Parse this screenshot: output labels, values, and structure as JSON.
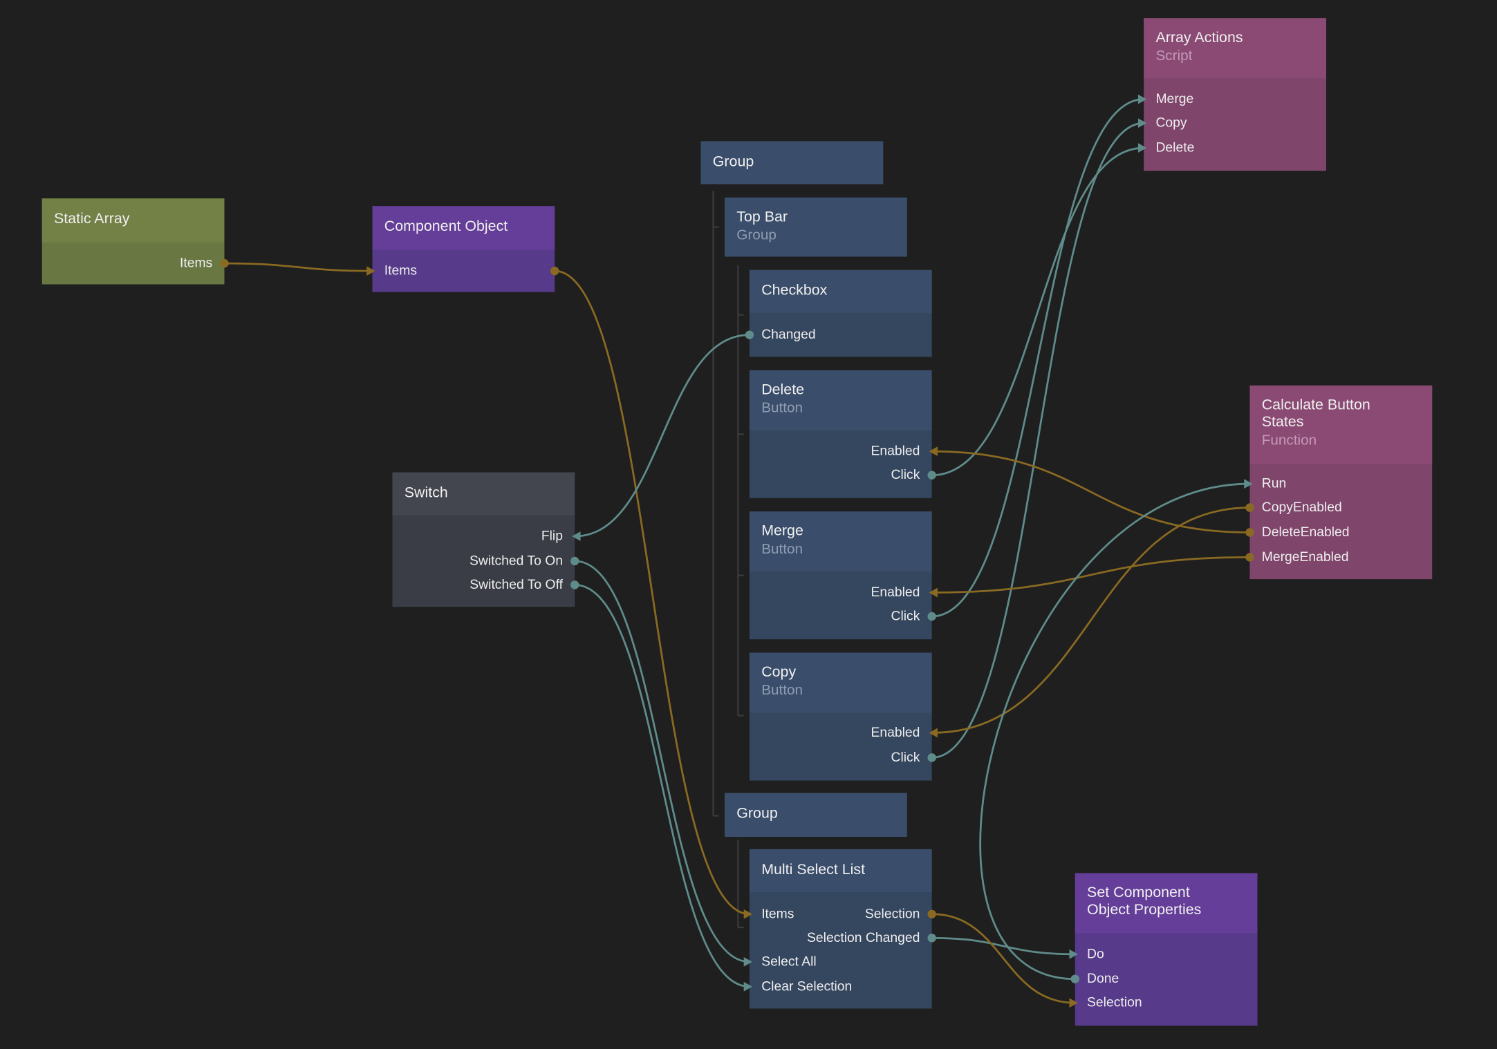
{
  "colors": {
    "background": "#1f1f1f",
    "gold": "#8a6a22",
    "teal": "#5f8c8a"
  },
  "themes": {
    "green": {
      "header": "#738147",
      "body": "#697843",
      "sub": "#c8d0a8"
    },
    "purple": {
      "header": "#643e98",
      "body": "#573a8a",
      "sub": "#b8a8d8"
    },
    "blue": {
      "header": "#3a4d6a",
      "body": "#35465f",
      "sub": "#8f9db3"
    },
    "grey": {
      "header": "#43454f",
      "body": "#3b3d46",
      "sub": "#a0a0a8"
    },
    "pink": {
      "header": "#8a4a74",
      "body": "#7f456b",
      "sub": "#c69ab6"
    }
  },
  "nodes": [
    {
      "id": "static_array",
      "title": "Static Array",
      "subtitle": "",
      "theme": "green",
      "ports": [
        {
          "label": "Items",
          "side": "right",
          "marker": "dot",
          "color": "gold"
        }
      ]
    },
    {
      "id": "component_object",
      "title": "Component Object",
      "subtitle": "",
      "theme": "purple",
      "ports": [
        {
          "label": "Items",
          "side": "left",
          "marker": "arrow",
          "color": "gold"
        },
        {
          "label": "",
          "side": "right",
          "marker": "dot",
          "color": "gold"
        }
      ]
    },
    {
      "id": "group_root",
      "title": "Group",
      "subtitle": "",
      "theme": "blue",
      "ports": []
    },
    {
      "id": "top_bar",
      "title": "Top Bar",
      "subtitle": "Group",
      "theme": "blue",
      "ports": []
    },
    {
      "id": "checkbox",
      "title": "Checkbox",
      "subtitle": "",
      "theme": "blue",
      "ports": [
        {
          "label": "Changed",
          "side": "left",
          "marker": "dot",
          "color": "teal"
        }
      ]
    },
    {
      "id": "delete_button",
      "title": "Delete",
      "subtitle": "Button",
      "theme": "blue",
      "ports": [
        {
          "label": "Enabled",
          "side": "right",
          "marker": "arrow",
          "color": "gold"
        },
        {
          "label": "Click",
          "side": "right",
          "marker": "dot",
          "color": "teal"
        }
      ]
    },
    {
      "id": "merge_button",
      "title": "Merge",
      "subtitle": "Button",
      "theme": "blue",
      "ports": [
        {
          "label": "Enabled",
          "side": "right",
          "marker": "arrow",
          "color": "gold"
        },
        {
          "label": "Click",
          "side": "right",
          "marker": "dot",
          "color": "teal"
        }
      ]
    },
    {
      "id": "copy_button",
      "title": "Copy",
      "subtitle": "Button",
      "theme": "blue",
      "ports": [
        {
          "label": "Enabled",
          "side": "right",
          "marker": "arrow",
          "color": "gold"
        },
        {
          "label": "Click",
          "side": "right",
          "marker": "dot",
          "color": "teal"
        }
      ]
    },
    {
      "id": "group_bottom",
      "title": "Group",
      "subtitle": "",
      "theme": "blue",
      "ports": []
    },
    {
      "id": "multi_select_list",
      "title": "Multi Select List",
      "subtitle": "",
      "theme": "blue",
      "ports": [
        {
          "label": "Items",
          "side": "left",
          "marker": "arrow",
          "color": "gold"
        },
        {
          "label": "Selection",
          "side": "right",
          "marker": "dot",
          "color": "gold"
        },
        {
          "label": "Selection Changed",
          "side": "right",
          "marker": "dot",
          "color": "teal"
        },
        {
          "label": "Select All",
          "side": "left",
          "marker": "arrow",
          "color": "teal"
        },
        {
          "label": "Clear Selection",
          "side": "left",
          "marker": "arrow",
          "color": "teal"
        }
      ]
    },
    {
      "id": "switch",
      "title": "Switch",
      "subtitle": "",
      "theme": "grey",
      "ports": [
        {
          "label": "Flip",
          "side": "right",
          "marker": "arrow",
          "color": "teal"
        },
        {
          "label": "Switched To On",
          "side": "right",
          "marker": "dot",
          "color": "teal"
        },
        {
          "label": "Switched To Off",
          "side": "right",
          "marker": "dot",
          "color": "teal"
        }
      ]
    },
    {
      "id": "array_actions",
      "title": "Array Actions",
      "subtitle": "Script",
      "theme": "pink",
      "ports": [
        {
          "label": "Merge",
          "side": "left",
          "marker": "arrow",
          "color": "teal"
        },
        {
          "label": "Copy",
          "side": "left",
          "marker": "arrow",
          "color": "teal"
        },
        {
          "label": "Delete",
          "side": "left",
          "marker": "arrow",
          "color": "teal"
        }
      ]
    },
    {
      "id": "calc_button_states",
      "title": "Calculate Button States",
      "subtitle": "Function",
      "theme": "pink",
      "ports": [
        {
          "label": "Run",
          "side": "left",
          "marker": "arrow",
          "color": "teal"
        },
        {
          "label": "CopyEnabled",
          "side": "left",
          "marker": "dot",
          "color": "gold"
        },
        {
          "label": "DeleteEnabled",
          "side": "left",
          "marker": "dot",
          "color": "gold"
        },
        {
          "label": "MergeEnabled",
          "side": "left",
          "marker": "dot",
          "color": "gold"
        }
      ]
    },
    {
      "id": "set_component_object_properties",
      "title": "Set Component Object Properties",
      "subtitle": "",
      "theme": "purple",
      "ports": [
        {
          "label": "Do",
          "side": "left",
          "marker": "arrow",
          "color": "teal"
        },
        {
          "label": "Done",
          "side": "left",
          "marker": "dot",
          "color": "teal"
        },
        {
          "label": "Selection",
          "side": "left",
          "marker": "arrow",
          "color": "gold"
        }
      ]
    }
  ],
  "edges": [
    {
      "from": "static_array.0",
      "to": "component_object.0",
      "color": "gold"
    },
    {
      "from": "component_object.1",
      "to": "multi_select_list.0",
      "color": "gold"
    },
    {
      "from": "checkbox.0",
      "to": "switch.0",
      "color": "teal"
    },
    {
      "from": "switch.1",
      "to": "multi_select_list.3",
      "color": "teal"
    },
    {
      "from": "switch.2",
      "to": "multi_select_list.4",
      "color": "teal"
    },
    {
      "from": "delete_button.1",
      "to": "array_actions.2",
      "color": "teal"
    },
    {
      "from": "merge_button.1",
      "to": "array_actions.0",
      "color": "teal"
    },
    {
      "from": "copy_button.1",
      "to": "array_actions.1",
      "color": "teal"
    },
    {
      "from": "calc_button_states.2",
      "to": "delete_button.0",
      "color": "gold"
    },
    {
      "from": "calc_button_states.3",
      "to": "merge_button.0",
      "color": "gold"
    },
    {
      "from": "calc_button_states.1",
      "to": "copy_button.0",
      "color": "gold"
    },
    {
      "from": "set_component_object_properties.1",
      "to": "calc_button_states.0",
      "color": "teal"
    },
    {
      "from": "multi_select_list.2",
      "to": "set_component_object_properties.0",
      "color": "teal"
    },
    {
      "from": "multi_select_list.1",
      "to": "set_component_object_properties.2",
      "color": "gold"
    }
  ]
}
